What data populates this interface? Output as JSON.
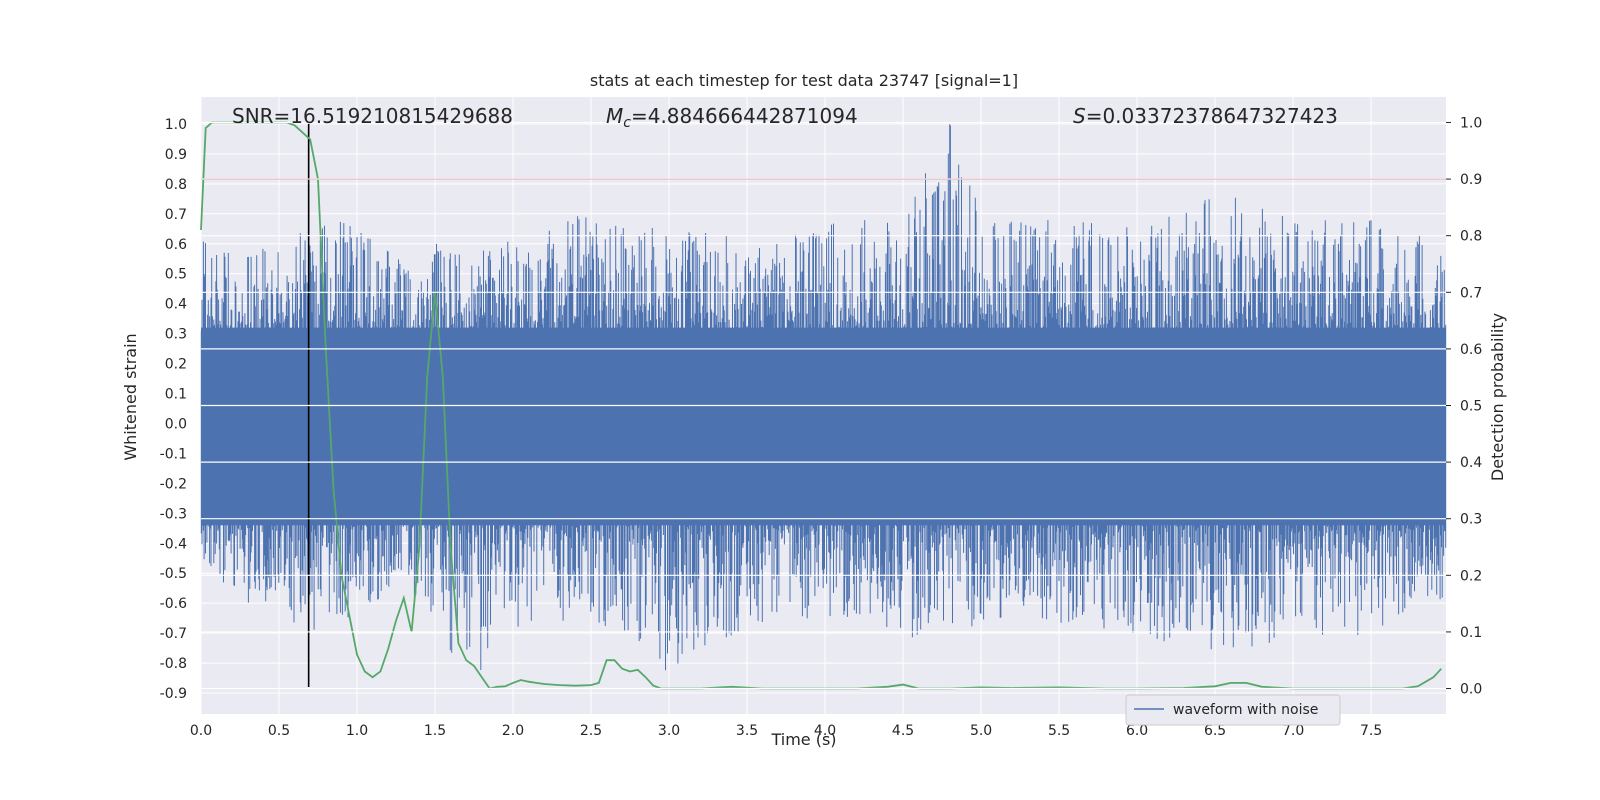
{
  "chart_data": {
    "type": "line",
    "title": "stats at each timestep for test data 23747 [signal=1]",
    "xlabel": "Time (s)",
    "ylabel_left": "Whitened strain",
    "ylabel_right": "Detection probability",
    "xlim": [
      0.0,
      7.98
    ],
    "ylim_left": [
      -0.97,
      1.09
    ],
    "ylim_right": [
      -0.045,
      1.045
    ],
    "x_ticks": [
      "0.0",
      "0.5",
      "1.0",
      "1.5",
      "2.0",
      "2.5",
      "3.0",
      "3.5",
      "4.0",
      "4.5",
      "5.0",
      "5.5",
      "6.0",
      "6.5",
      "7.0",
      "7.5"
    ],
    "y_left_ticks": [
      "1.0",
      "0.9",
      "0.8",
      "0.7",
      "0.6",
      "0.5",
      "0.4",
      "0.3",
      "0.2",
      "0.1",
      "0.0",
      "-0.1",
      "-0.2",
      "-0.3",
      "-0.4",
      "-0.5",
      "-0.6",
      "-0.7",
      "-0.8",
      "-0.9"
    ],
    "y_right_ticks": [
      "1.0",
      "0.9",
      "0.8",
      "0.7",
      "0.6",
      "0.5",
      "0.4",
      "0.3",
      "0.2",
      "0.1",
      "0.0"
    ],
    "grid": true,
    "legend_position": "lower-right",
    "annotations": {
      "snr": "SNR=16.519210815429688",
      "mc_symbol": "M",
      "mc_subscript": "c",
      "mc_value": "=4.884666442871094",
      "s_symbol": "S",
      "s_value": "=0.03372378647327423"
    },
    "threshold_line": {
      "axis": "right",
      "y": 0.9,
      "color": "#c44e52"
    },
    "marker_line": {
      "x": 0.69,
      "y_range": [
        -0.88,
        1.0
      ],
      "color": "#000000"
    },
    "series": [
      {
        "name": "waveform with noise",
        "axis": "left",
        "color": "#4c72b0",
        "envelope": {
          "x": [
            0.0,
            0.25,
            0.5,
            0.75,
            1.0,
            1.25,
            1.5,
            1.75,
            2.0,
            2.5,
            3.0,
            3.5,
            4.0,
            4.5,
            4.8,
            5.0,
            5.5,
            6.0,
            6.5,
            7.0,
            7.5,
            7.98
          ],
          "upper": [
            0.62,
            0.6,
            0.58,
            0.7,
            0.66,
            0.6,
            0.6,
            0.6,
            0.62,
            0.72,
            0.65,
            0.62,
            0.68,
            0.7,
            1.0,
            0.7,
            0.68,
            0.66,
            0.78,
            0.68,
            0.68,
            0.62
          ],
          "lower": [
            -0.45,
            -0.6,
            -0.65,
            -0.7,
            -0.65,
            -0.55,
            -0.7,
            -0.88,
            -0.7,
            -0.65,
            -0.85,
            -0.68,
            -0.65,
            -0.72,
            -0.7,
            -0.7,
            -0.68,
            -0.72,
            -0.77,
            -0.72,
            -0.72,
            -0.6
          ]
        }
      },
      {
        "name": "",
        "axis": "right",
        "color": "#55a868",
        "x": [
          0.0,
          0.03,
          0.07,
          0.12,
          0.2,
          0.3,
          0.4,
          0.5,
          0.55,
          0.6,
          0.66,
          0.7,
          0.75,
          0.8,
          0.85,
          0.9,
          0.95,
          1.0,
          1.05,
          1.1,
          1.15,
          1.2,
          1.25,
          1.3,
          1.35,
          1.4,
          1.45,
          1.5,
          1.55,
          1.6,
          1.65,
          1.7,
          1.75,
          1.8,
          1.85,
          1.9,
          1.95,
          2.0,
          2.05,
          2.1,
          2.15,
          2.2,
          2.3,
          2.4,
          2.5,
          2.55,
          2.6,
          2.65,
          2.7,
          2.75,
          2.8,
          2.85,
          2.9,
          2.95,
          3.0,
          3.2,
          3.4,
          3.6,
          3.8,
          4.0,
          4.2,
          4.4,
          4.5,
          4.6,
          4.8,
          5.0,
          5.2,
          5.5,
          5.8,
          6.0,
          6.3,
          6.5,
          6.6,
          6.7,
          6.8,
          7.0,
          7.5,
          7.7,
          7.8,
          7.9,
          7.95
        ],
        "y": [
          0.81,
          0.99,
          1.0,
          1.0,
          1.0,
          1.0,
          1.0,
          1.0,
          1.0,
          0.995,
          0.98,
          0.97,
          0.9,
          0.6,
          0.35,
          0.2,
          0.13,
          0.06,
          0.03,
          0.02,
          0.03,
          0.07,
          0.12,
          0.16,
          0.1,
          0.25,
          0.55,
          0.7,
          0.55,
          0.25,
          0.08,
          0.05,
          0.04,
          0.02,
          0.0,
          0.003,
          0.004,
          0.01,
          0.015,
          0.012,
          0.01,
          0.008,
          0.006,
          0.005,
          0.006,
          0.01,
          0.05,
          0.05,
          0.035,
          0.03,
          0.033,
          0.02,
          0.005,
          0.0,
          0.0,
          0.0,
          0.003,
          0.0,
          0.0,
          0.0,
          0.0,
          0.003,
          0.007,
          0.0,
          0.0,
          0.002,
          0.001,
          0.002,
          0.0,
          0.0,
          0.001,
          0.004,
          0.01,
          0.01,
          0.003,
          0.0,
          0.0,
          0.0,
          0.004,
          0.02,
          0.035
        ]
      }
    ]
  }
}
